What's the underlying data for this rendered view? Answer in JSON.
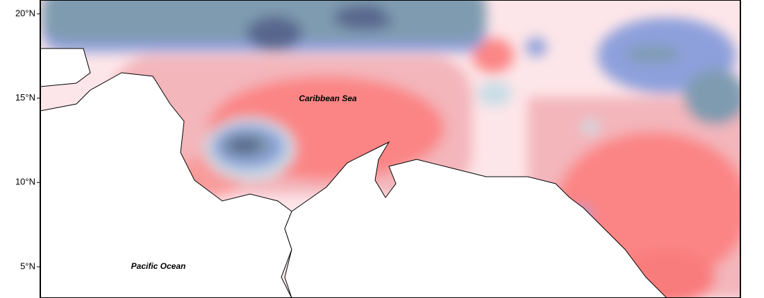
{
  "map": {
    "ylim": [
      3.15,
      20.82
    ],
    "yticks": [
      {
        "value": 5,
        "label": "5°N"
      },
      {
        "value": 10,
        "label": "10°N"
      },
      {
        "value": 15,
        "label": "15°N"
      },
      {
        "value": 20,
        "label": "20°N"
      }
    ],
    "labels": [
      "Caribbean Sea",
      "Pacific Ocean"
    ]
  }
}
